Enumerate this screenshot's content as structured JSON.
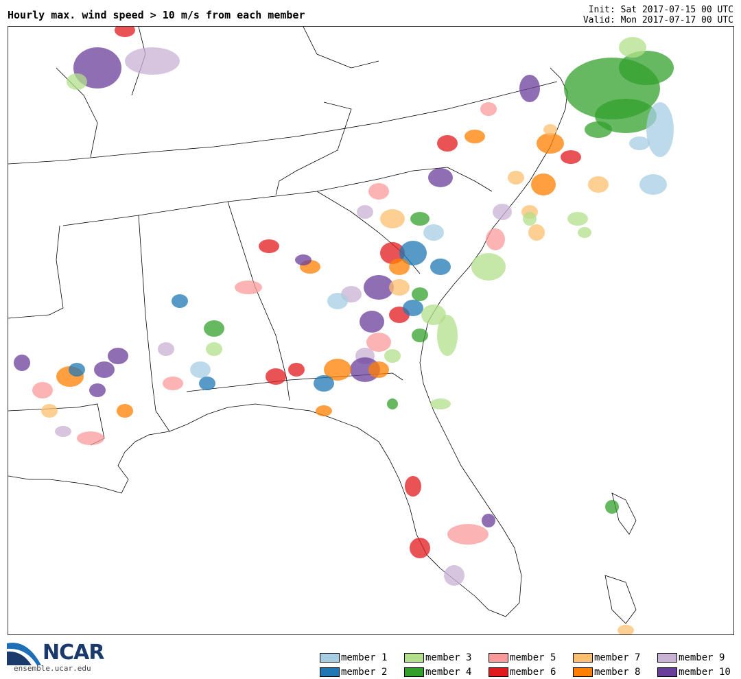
{
  "title": "Hourly max. wind speed > 10 m/s from each member",
  "init": "Init: Sat 2017-07-15 00 UTC",
  "valid": "Valid: Mon 2017-07-17 00 UTC",
  "logo": {
    "name": "NCAR",
    "url": "ensemble.ucar.edu"
  },
  "legend": [
    {
      "label": "member 1",
      "color": "#a6cee3"
    },
    {
      "label": "member 2",
      "color": "#1f78b4"
    },
    {
      "label": "member 3",
      "color": "#b2df8a"
    },
    {
      "label": "member 4",
      "color": "#33a02c"
    },
    {
      "label": "member 5",
      "color": "#fb9a99"
    },
    {
      "label": "member 6",
      "color": "#e31a1c"
    },
    {
      "label": "member 7",
      "color": "#fdbf6f"
    },
    {
      "label": "member 8",
      "color": "#ff7f00"
    },
    {
      "label": "member 9",
      "color": "#cab2d6"
    },
    {
      "label": "member 10",
      "color": "#6a3d9a"
    }
  ]
}
